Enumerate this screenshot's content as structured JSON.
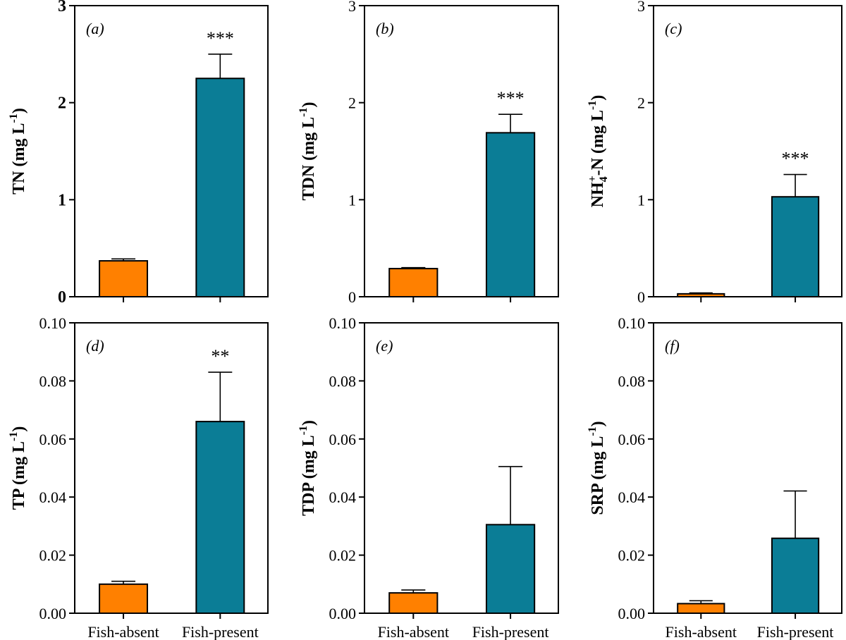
{
  "chart_data": [
    {
      "type": "bar",
      "panel": "(a)",
      "panel_letter": "a",
      "ylabel_main": "TN (mg L",
      "ylabel_sup": "-1",
      "ylabel_close": ")",
      "ylim": [
        0,
        3
      ],
      "yticks": [
        "0",
        "1",
        "2",
        "3"
      ],
      "ytick_values": [
        0,
        1,
        2,
        3
      ],
      "bold_ticks": true,
      "categories": [
        "Fish-absent",
        "Fish-present"
      ],
      "values": [
        0.37,
        2.25
      ],
      "errors": [
        0.02,
        0.25
      ],
      "colors": [
        "#ff8000",
        "#0b7d96"
      ],
      "significance": [
        "",
        "***"
      ],
      "show_categories": false
    },
    {
      "type": "bar",
      "panel": "(b)",
      "panel_letter": "b",
      "ylabel_main": "TDN (mg L",
      "ylabel_sup": "-1",
      "ylabel_close": ")",
      "ylim": [
        0,
        3
      ],
      "yticks": [
        "0",
        "1",
        "2",
        "3"
      ],
      "ytick_values": [
        0,
        1,
        2,
        3
      ],
      "bold_ticks": false,
      "categories": [
        "Fish-absent",
        "Fish-present"
      ],
      "values": [
        0.29,
        1.69
      ],
      "errors": [
        0.01,
        0.19
      ],
      "colors": [
        "#ff8000",
        "#0b7d96"
      ],
      "significance": [
        "",
        "***"
      ],
      "show_categories": false
    },
    {
      "type": "bar",
      "panel": "(c)",
      "panel_letter": "c",
      "ylabel_main": "NH",
      "ylabel_sub": "4",
      "ylabel_sup": "+",
      "ylabel_rest": "-N (mg L",
      "ylabel_sup2": "-1",
      "ylabel_close": ")",
      "ylim": [
        0,
        3
      ],
      "yticks": [
        "0",
        "1",
        "2",
        "3"
      ],
      "ytick_values": [
        0,
        1,
        2,
        3
      ],
      "bold_ticks": false,
      "categories": [
        "Fish-absent",
        "Fish-present"
      ],
      "values": [
        0.03,
        1.03
      ],
      "errors": [
        0.01,
        0.23
      ],
      "colors": [
        "#ff8000",
        "#0b7d96"
      ],
      "significance": [
        "",
        "***"
      ],
      "show_categories": false
    },
    {
      "type": "bar",
      "panel": "(d)",
      "panel_letter": "d",
      "ylabel_main": "TP (mg L",
      "ylabel_sup": "-1",
      "ylabel_close": ")",
      "ylim": [
        0,
        0.1
      ],
      "yticks": [
        "0.00",
        "0.02",
        "0.04",
        "0.06",
        "0.08",
        "0.10"
      ],
      "ytick_values": [
        0,
        0.02,
        0.04,
        0.06,
        0.08,
        0.1
      ],
      "bold_ticks": false,
      "categories": [
        "Fish-absent",
        "Fish-present"
      ],
      "values": [
        0.01,
        0.066
      ],
      "errors": [
        0.001,
        0.017
      ],
      "colors": [
        "#ff8000",
        "#0b7d96"
      ],
      "significance": [
        "",
        "**"
      ],
      "show_categories": true
    },
    {
      "type": "bar",
      "panel": "(e)",
      "panel_letter": "e",
      "ylabel_main": "TDP (mg L",
      "ylabel_sup": "-1",
      "ylabel_close": ")",
      "ylim": [
        0,
        0.1
      ],
      "yticks": [
        "0.00",
        "0.02",
        "0.04",
        "0.06",
        "0.08",
        "0.10"
      ],
      "ytick_values": [
        0,
        0.02,
        0.04,
        0.06,
        0.08,
        0.1
      ],
      "bold_ticks": false,
      "categories": [
        "Fish-absent",
        "Fish-present"
      ],
      "values": [
        0.007,
        0.0305
      ],
      "errors": [
        0.001,
        0.02
      ],
      "colors": [
        "#ff8000",
        "#0b7d96"
      ],
      "significance": [
        "",
        ""
      ],
      "show_categories": true
    },
    {
      "type": "bar",
      "panel": "(f)",
      "panel_letter": "f",
      "ylabel_main": "SRP (mg L",
      "ylabel_sup": "-1",
      "ylabel_close": ")",
      "ylim": [
        0,
        0.1
      ],
      "yticks": [
        "0.00",
        "0.02",
        "0.04",
        "0.06",
        "0.08",
        "0.10"
      ],
      "ytick_values": [
        0,
        0.02,
        0.04,
        0.06,
        0.08,
        0.1
      ],
      "bold_ticks": false,
      "categories": [
        "Fish-absent",
        "Fish-present"
      ],
      "values": [
        0.0033,
        0.0258
      ],
      "errors": [
        0.001,
        0.0163
      ],
      "colors": [
        "#ff8000",
        "#0b7d96"
      ],
      "significance": [
        "",
        ""
      ],
      "show_categories": true
    }
  ]
}
